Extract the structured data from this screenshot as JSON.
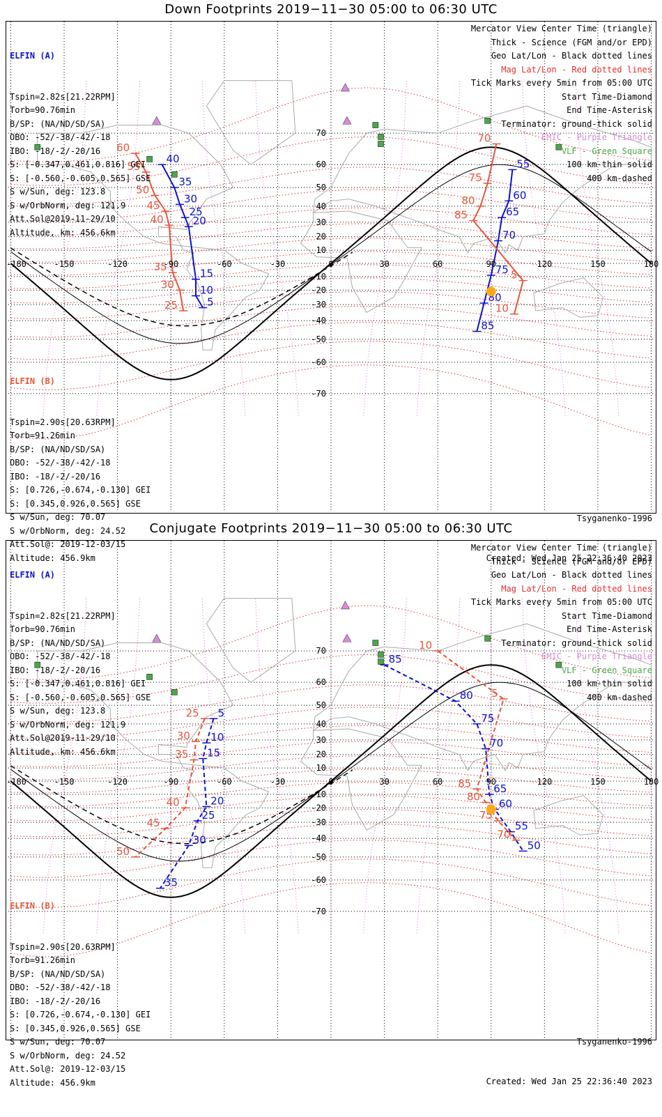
{
  "panels": [
    {
      "title": "Down Footprints 2019−11−30 05:00 to 06:30 UTC",
      "created": "Created: Wed Jan 25 22:36:40 2023",
      "tick_marks": {
        "a": [
          [
            "40",
            -95,
            60
          ],
          [
            "35",
            -88,
            50
          ],
          [
            "30",
            -85,
            41
          ],
          [
            "25",
            -82,
            33
          ],
          [
            "20",
            -80,
            27
          ],
          [
            "15",
            -76,
            -12
          ],
          [
            "10",
            -76,
            -24
          ],
          [
            "5",
            -72,
            -32
          ],
          [
            "55",
            102,
            58
          ],
          [
            "60",
            100,
            43
          ],
          [
            "65",
            96,
            33
          ],
          [
            "70",
            94,
            17
          ],
          [
            "75",
            90,
            -9
          ],
          [
            "80",
            86,
            -29
          ],
          [
            "85",
            82,
            -46
          ]
        ],
        "b": [
          [
            "60",
            -110,
            64
          ],
          [
            "55",
            -104,
            57
          ],
          [
            "50",
            -99,
            46
          ],
          [
            "45",
            -93,
            37
          ],
          [
            "40",
            -91,
            28
          ],
          [
            "35",
            -89,
            -7
          ],
          [
            "30",
            -85,
            -20
          ],
          [
            "25",
            -83,
            -34
          ],
          [
            "70",
            93,
            67
          ],
          [
            "75",
            88,
            52
          ],
          [
            "80",
            84,
            40
          ],
          [
            "85",
            80,
            31
          ],
          [
            "5",
            108,
            -13
          ],
          [
            "10",
            103,
            -36
          ]
        ]
      }
    },
    {
      "title": "Conjugate Footprints 2019−11−30 05:00 to 06:30 UTC",
      "created": "Created: Wed Jan 25 22:36:40 2023",
      "tick_marks": {
        "a": [
          [
            "85",
            30,
            66
          ],
          [
            "80",
            70,
            52
          ],
          [
            "75",
            82,
            40
          ],
          [
            "70",
            87,
            24
          ],
          [
            "65",
            89,
            -10
          ],
          [
            "60",
            92,
            -21
          ],
          [
            "55",
            101,
            -36
          ],
          [
            "50",
            108,
            -47
          ],
          [
            "5",
            -66,
            43
          ],
          [
            "10",
            -70,
            28
          ],
          [
            "15",
            -72,
            17
          ],
          [
            "20",
            -70,
            -19
          ],
          [
            "25",
            -75,
            -29
          ],
          [
            "30",
            -80,
            -44
          ],
          [
            "35",
            -96,
            -63
          ]
        ],
        "b": [
          [
            "10",
            60,
            70
          ],
          [
            "5",
            97,
            53
          ],
          [
            "25",
            -71,
            43
          ],
          [
            "30",
            -76,
            29
          ],
          [
            "35",
            -77,
            16
          ],
          [
            "40",
            -82,
            -20
          ],
          [
            "45",
            -93,
            -34
          ],
          [
            "50",
            -110,
            -50
          ],
          [
            "85",
            82,
            -6
          ],
          [
            "80",
            87,
            -16
          ],
          [
            "75",
            94,
            -29
          ],
          [
            "70",
            104,
            -41
          ]
        ]
      }
    }
  ],
  "elfin_a": {
    "header": "ELFIN (A)",
    "lines": [
      "Tspin=2.82s[21.22RPM]",
      "Torb=90.76min",
      "B/SP: (NA/ND/SD/SA)",
      "OBO: -52/-38/-42/-18",
      "IBO: -18/-2/-20/16",
      "S: [-0.347,0.461,0.816] GEI",
      "S: [-0.560,-0.605,0.565] GSE",
      "S w/Sun, deg: 123.8",
      "S w/OrbNorm, deg: 121.9",
      "Att.Sol@2019-11-29/10",
      "Altitude, km: 456.6km"
    ]
  },
  "elfin_b": {
    "header": "ELFIN (B)",
    "lines": [
      "Tspin=2.90s[20.63RPM]",
      "Torb=91.26min",
      "B/SP: (NA/ND/SD/SA)",
      "OBO: -52/-38/-42/-18",
      "IBO: -18/-2/-20/16",
      "S: [0.726,-0.674,-0.130] GEI",
      "S: [0.345,0.926,0.565] GSE",
      "S w/Sun, deg: 70.07",
      "S w/OrbNorm, deg: 24.52",
      "Att.Sol@: 2019-12-03/15",
      "Altitude: 456.9km"
    ]
  },
  "legend": {
    "lines": [
      "Mercator View Center Time (triangle)",
      "Thick - Science (FGM and/or EPD)",
      "Geo Lat/Lon - Black dotted lines",
      "Mag Lat/Lon - Red dotted lines",
      "Tick Marks every 5min from 05:00 UTC",
      "Start Time-Diamond",
      "End Time-Asterisk",
      "Terminator: ground-thick solid",
      "EMIC - Purple Triangle",
      "VLF - Green Square",
      "100 km-thin solid",
      "400 km-dashed"
    ],
    "colors": [
      "#000000",
      "#000000",
      "#000000",
      "#e83030",
      "#000000",
      "#000000",
      "#000000",
      "#000000",
      "#d98ad9",
      "#4aa84a",
      "#000000",
      "#000000"
    ]
  },
  "model": "Tsyganenko-1996",
  "axes": {
    "lon_ticks": [
      "-180",
      "-150",
      "-120",
      "-90",
      "-60",
      "-30",
      "0",
      "30",
      "60",
      "90",
      "120",
      "150",
      "180"
    ],
    "lat_ticks": [
      "70",
      "60",
      "50",
      "40",
      "30",
      "20",
      "10",
      "-10",
      "-20",
      "-30",
      "-40",
      "-50",
      "-60",
      "-70"
    ]
  },
  "markers": {
    "emic": [
      [
        8,
        79
      ],
      [
        9,
        73
      ],
      [
        -98,
        73
      ]
    ],
    "vlf": [
      [
        25,
        72
      ],
      [
        28,
        69
      ],
      [
        28,
        67
      ],
      [
        88,
        73
      ],
      [
        128,
        66
      ],
      [
        -102,
        62
      ],
      [
        -165,
        66
      ],
      [
        -88,
        56
      ]
    ],
    "sun": [
      90,
      -21
    ]
  },
  "colors": {
    "elfin_a": "#0b12cc",
    "elfin_b": "#e8553a",
    "mag": "#e83030",
    "geo": "#000000",
    "emic": "#d98ad9",
    "vlf": "#4aa84a",
    "sun": "#ffa81a"
  }
}
